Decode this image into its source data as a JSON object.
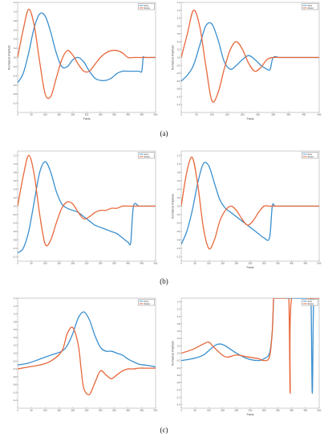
{
  "row_labels": [
    "(a)",
    "(b)",
    "(c)"
  ],
  "colors": {
    "series1": "#3a8fcf",
    "series2": "#e8683a"
  },
  "chart_data": [
    {
      "type": "line",
      "panel": "a-left",
      "xlabel": "Points",
      "ylabel": "Normalized Amplitude",
      "xlim": [
        0,
        500
      ],
      "ylim": [
        -1.2,
        1.2
      ],
      "xticks": [
        0,
        50,
        100,
        150,
        200,
        250,
        300,
        350,
        400,
        450,
        500
      ],
      "legend": "top-right",
      "series": [
        {
          "name": "SCG",
          "x": [
            0,
            20,
            40,
            60,
            80,
            100,
            120,
            140,
            160,
            180,
            200,
            220,
            240,
            260,
            280,
            300,
            320,
            340,
            360,
            380,
            400,
            420,
            440,
            450,
            455,
            460,
            480,
            500
          ],
          "y": [
            -0.55,
            -0.35,
            0.1,
            0.65,
            0.95,
            0.9,
            0.55,
            0.1,
            -0.2,
            -0.2,
            -0.05,
            0.0,
            -0.1,
            -0.3,
            -0.45,
            -0.5,
            -0.5,
            -0.45,
            -0.35,
            -0.3,
            -0.3,
            -0.3,
            -0.3,
            -0.3,
            0.0,
            0.0,
            0.0,
            0.0
          ]
        },
        {
          "name": "SCGd",
          "x": [
            0,
            20,
            40,
            60,
            80,
            100,
            120,
            140,
            160,
            180,
            200,
            220,
            240,
            260,
            280,
            300,
            320,
            340,
            360,
            380,
            400,
            420,
            440,
            460,
            480,
            500
          ],
          "y": [
            0.0,
            0.6,
            1.05,
            0.7,
            -0.1,
            -0.8,
            -0.85,
            -0.45,
            -0.05,
            0.15,
            0.05,
            -0.15,
            -0.3,
            -0.3,
            -0.15,
            0.0,
            0.1,
            0.15,
            0.15,
            0.1,
            0.0,
            0.0,
            0.0,
            0.0,
            0.0,
            0.0
          ]
        }
      ]
    },
    {
      "type": "line",
      "panel": "a-right",
      "xlabel": "Points",
      "ylabel": "Normalized Amplitude",
      "xlim": [
        0,
        450
      ],
      "ylim": [
        -1.4,
        1.4
      ],
      "xticks": [
        0,
        50,
        100,
        150,
        200,
        250,
        300,
        350,
        400,
        450
      ],
      "legend": "top-right",
      "series": [
        {
          "name": "SCG",
          "x": [
            0,
            20,
            40,
            60,
            80,
            100,
            120,
            140,
            160,
            180,
            200,
            220,
            240,
            260,
            280,
            290,
            300,
            320,
            340,
            360,
            380,
            400,
            420,
            450
          ],
          "y": [
            -0.6,
            -0.45,
            -0.2,
            0.3,
            0.8,
            0.85,
            0.45,
            -0.1,
            -0.3,
            -0.2,
            -0.05,
            0.05,
            -0.05,
            -0.2,
            -0.3,
            -0.3,
            0.0,
            0.0,
            0.0,
            0.0,
            0.0,
            0.0,
            0.0,
            0.0
          ]
        },
        {
          "name": "SCGd",
          "x": [
            0,
            20,
            40,
            60,
            80,
            100,
            120,
            140,
            160,
            180,
            200,
            220,
            240,
            260,
            280,
            300,
            320,
            340,
            360,
            380,
            400,
            420,
            450
          ],
          "y": [
            0.0,
            0.6,
            1.2,
            0.8,
            -0.2,
            -1.1,
            -0.9,
            -0.3,
            0.2,
            0.4,
            0.2,
            -0.15,
            -0.35,
            -0.25,
            -0.05,
            0.0,
            0.0,
            0.0,
            0.0,
            0.0,
            0.0,
            0.0,
            0.0
          ]
        }
      ]
    },
    {
      "type": "line",
      "panel": "b-left",
      "xlabel": "",
      "ylabel": "",
      "xlim": [
        0,
        500
      ],
      "ylim": [
        -1.3,
        1.3
      ],
      "xticks": [
        0,
        50,
        100,
        150,
        200,
        250,
        300,
        350,
        400,
        450,
        500
      ],
      "legend": "top-right",
      "series": [
        {
          "name": "SCG",
          "x": [
            0,
            20,
            40,
            60,
            80,
            100,
            120,
            140,
            160,
            180,
            200,
            220,
            240,
            260,
            280,
            300,
            320,
            340,
            360,
            380,
            400,
            410,
            420,
            440,
            460,
            480,
            500
          ],
          "y": [
            -1.1,
            -1.0,
            -0.6,
            0.1,
            0.8,
            1.05,
            0.8,
            0.35,
            0.05,
            -0.05,
            -0.1,
            -0.15,
            -0.25,
            -0.35,
            -0.45,
            -0.5,
            -0.55,
            -0.6,
            -0.65,
            -0.75,
            -0.85,
            -0.85,
            0.0,
            0.0,
            0.0,
            0.0,
            0.0
          ]
        },
        {
          "name": "SCGd",
          "x": [
            0,
            20,
            40,
            60,
            80,
            100,
            120,
            140,
            160,
            180,
            200,
            220,
            240,
            260,
            280,
            300,
            320,
            340,
            360,
            380,
            400,
            420,
            440,
            460,
            480,
            500
          ],
          "y": [
            0.0,
            0.7,
            1.2,
            0.75,
            -0.2,
            -0.9,
            -0.8,
            -0.4,
            -0.05,
            0.1,
            0.05,
            -0.15,
            -0.3,
            -0.25,
            -0.15,
            -0.1,
            -0.1,
            -0.05,
            -0.05,
            0.0,
            0.0,
            0.0,
            0.0,
            0.0,
            0.0,
            0.0
          ]
        }
      ]
    },
    {
      "type": "line",
      "panel": "b-right",
      "xlabel": "Points",
      "ylabel": "Normalized Amplitude",
      "xlim": [
        0,
        500
      ],
      "ylim": [
        -1.3,
        1.3
      ],
      "xticks": [
        0,
        50,
        100,
        150,
        200,
        250,
        300,
        350,
        400,
        450,
        500
      ],
      "legend": "top-right",
      "series": [
        {
          "name": "SCG",
          "x": [
            0,
            20,
            40,
            60,
            80,
            100,
            120,
            140,
            160,
            180,
            200,
            220,
            240,
            260,
            280,
            300,
            320,
            330,
            340,
            360,
            380,
            400,
            420,
            440,
            460,
            480,
            500
          ],
          "y": [
            -0.9,
            -0.6,
            -0.1,
            0.55,
            1.0,
            0.95,
            0.55,
            0.15,
            -0.05,
            -0.15,
            -0.25,
            -0.35,
            -0.45,
            -0.55,
            -0.65,
            -0.75,
            -0.75,
            0.0,
            0.0,
            0.0,
            0.0,
            0.0,
            0.0,
            0.0,
            0.0,
            0.0,
            0.0
          ]
        },
        {
          "name": "SCGd",
          "x": [
            0,
            20,
            40,
            60,
            80,
            100,
            120,
            140,
            160,
            180,
            200,
            220,
            240,
            260,
            280,
            300,
            320,
            340,
            360,
            380,
            400,
            420,
            440,
            460,
            480,
            500
          ],
          "y": [
            0.0,
            0.8,
            1.15,
            0.5,
            -0.5,
            -1.0,
            -0.8,
            -0.35,
            -0.1,
            0.0,
            -0.1,
            -0.3,
            -0.45,
            -0.35,
            -0.15,
            0.0,
            0.0,
            0.0,
            0.0,
            0.0,
            0.0,
            0.0,
            0.0,
            0.0,
            0.0,
            0.0
          ]
        }
      ]
    },
    {
      "type": "line",
      "panel": "c-left",
      "xlabel": "",
      "ylabel": "",
      "xlim": [
        0,
        500
      ],
      "ylim": [
        -1.4,
        1.4
      ],
      "xticks": [
        0,
        50,
        100,
        150,
        200,
        250,
        300,
        350,
        400,
        450,
        500
      ],
      "legend": "top-right",
      "series": [
        {
          "name": "SCG",
          "x": [
            0,
            40,
            80,
            120,
            160,
            180,
            200,
            220,
            240,
            260,
            280,
            300,
            320,
            340,
            360,
            380,
            400,
            420,
            440,
            460,
            480,
            500
          ],
          "y": [
            -0.3,
            -0.25,
            -0.15,
            -0.05,
            0.05,
            0.2,
            0.5,
            0.9,
            1.05,
            0.85,
            0.45,
            0.15,
            0.05,
            0.05,
            0.0,
            -0.05,
            -0.15,
            -0.22,
            -0.28,
            -0.3,
            -0.32,
            -0.35
          ]
        },
        {
          "name": "SCGd",
          "x": [
            0,
            40,
            80,
            120,
            160,
            180,
            200,
            220,
            230,
            240,
            260,
            280,
            300,
            320,
            340,
            360,
            380,
            400,
            420,
            440,
            460,
            480,
            500
          ],
          "y": [
            -0.4,
            -0.35,
            -0.3,
            -0.2,
            0.05,
            0.5,
            0.65,
            0.2,
            -0.4,
            -0.9,
            -1.05,
            -0.75,
            -0.45,
            -0.55,
            -0.65,
            -0.55,
            -0.45,
            -0.4,
            -0.4,
            -0.38,
            -0.38,
            -0.38,
            -0.38
          ]
        }
      ]
    },
    {
      "type": "line",
      "panel": "c-right",
      "xlabel": "Points",
      "ylabel": "Normalized Amplitude",
      "xlim": [
        0,
        500
      ],
      "ylim": [
        -1.5,
        1.5
      ],
      "xticks": [
        0,
        50,
        100,
        150,
        200,
        250,
        300,
        350,
        400,
        450,
        500
      ],
      "legend": "top-right",
      "series": [
        {
          "name": "SCG",
          "x": [
            0,
            40,
            80,
            120,
            140,
            160,
            200,
            240,
            280,
            300,
            320,
            330,
            335,
            340,
            350,
            360,
            460,
            470,
            475,
            480,
            490,
            500
          ],
          "y": [
            -0.2,
            -0.15,
            -0.05,
            0.2,
            0.25,
            0.2,
            0.0,
            -0.15,
            -0.2,
            -0.15,
            0.0,
            0.6,
            1.5,
            1.5,
            1.5,
            1.5,
            1.5,
            1.5,
            -1.1,
            1.5,
            1.5,
            1.5
          ]
        },
        {
          "name": "SCGd",
          "x": [
            0,
            40,
            80,
            100,
            120,
            160,
            200,
            240,
            280,
            300,
            320,
            330,
            335,
            340,
            360,
            380,
            390,
            395,
            400,
            460,
            465,
            470,
            480,
            500
          ],
          "y": [
            0.0,
            0.1,
            0.25,
            0.3,
            0.15,
            -0.1,
            -0.05,
            -0.1,
            -0.15,
            -0.2,
            -0.1,
            0.6,
            1.5,
            1.5,
            1.5,
            1.5,
            1.5,
            -1.1,
            1.5,
            1.5,
            1.5,
            1.5,
            1.5,
            1.5
          ]
        }
      ]
    }
  ]
}
